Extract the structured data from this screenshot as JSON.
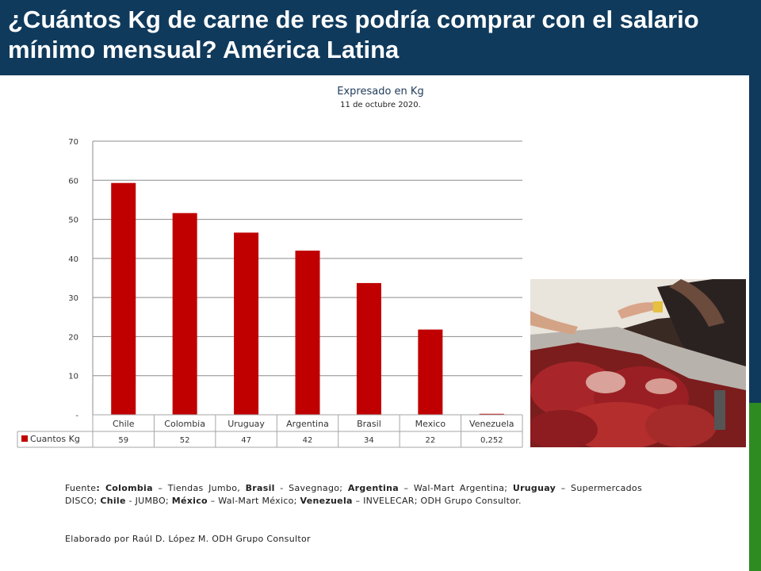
{
  "header": {
    "title": "¿Cuántos Kg de carne de res podría comprar con el salario mínimo mensual? América Latina"
  },
  "colors": {
    "header_bg": "#0f3a5c",
    "bar": "#c00000",
    "accent_green": "#2e8b22"
  },
  "photo": {
    "icon": "meat-counter-photo"
  },
  "chart_data": {
    "type": "bar",
    "title": "Expresado en Kg",
    "subtitle": "11 de octubre 2020.",
    "categories": [
      "Chile",
      "Colombia",
      "Uruguay",
      "Argentina",
      "Brasil",
      "Mexico",
      "Venezuela"
    ],
    "series": [
      {
        "name": "Cuantos Kg",
        "values": [
          59.3,
          51.6,
          46.6,
          42.0,
          33.7,
          21.8,
          0.252
        ],
        "labels": [
          "59",
          "52",
          "47",
          "42",
          "34",
          "22",
          "0,252"
        ]
      }
    ],
    "y_ticks": [
      {
        "value": 0,
        "label": "-"
      },
      {
        "value": 10,
        "label": "10"
      },
      {
        "value": 20,
        "label": "20"
      },
      {
        "value": 30,
        "label": "30"
      },
      {
        "value": 40,
        "label": "40"
      },
      {
        "value": 50,
        "label": "50"
      },
      {
        "value": 60,
        "label": "60"
      },
      {
        "value": 70,
        "label": "70"
      }
    ],
    "ylim": [
      0,
      70
    ],
    "grid": true,
    "legend": "data-table"
  },
  "source": {
    "segments": [
      {
        "text": "Fuente",
        "bold": false
      },
      {
        "text": ": ",
        "bold": true
      },
      {
        "text": "Colombia",
        "bold": true
      },
      {
        "text": " – Tiendas Jumbo, ",
        "bold": false
      },
      {
        "text": "Brasil",
        "bold": true
      },
      {
        "text": " - Savegnago; ",
        "bold": false
      },
      {
        "text": "Argentina",
        "bold": true
      },
      {
        "text": " – Wal-Mart Argentina; ",
        "bold": false
      },
      {
        "text": "Uruguay",
        "bold": true
      },
      {
        "text": " – Supermercados DISCO; ",
        "bold": false
      },
      {
        "text": "Chile",
        "bold": true
      },
      {
        "text": " - JUMBO; ",
        "bold": false
      },
      {
        "text": "México",
        "bold": true
      },
      {
        "text": " – Wal-Mart México; ",
        "bold": false
      },
      {
        "text": "Venezuela",
        "bold": true
      },
      {
        "text": " – INVELECAR; ODH Grupo Consultor.",
        "bold": false
      }
    ],
    "credit": "Elaborado por Raúl D. López M. ODH Grupo Consultor"
  }
}
